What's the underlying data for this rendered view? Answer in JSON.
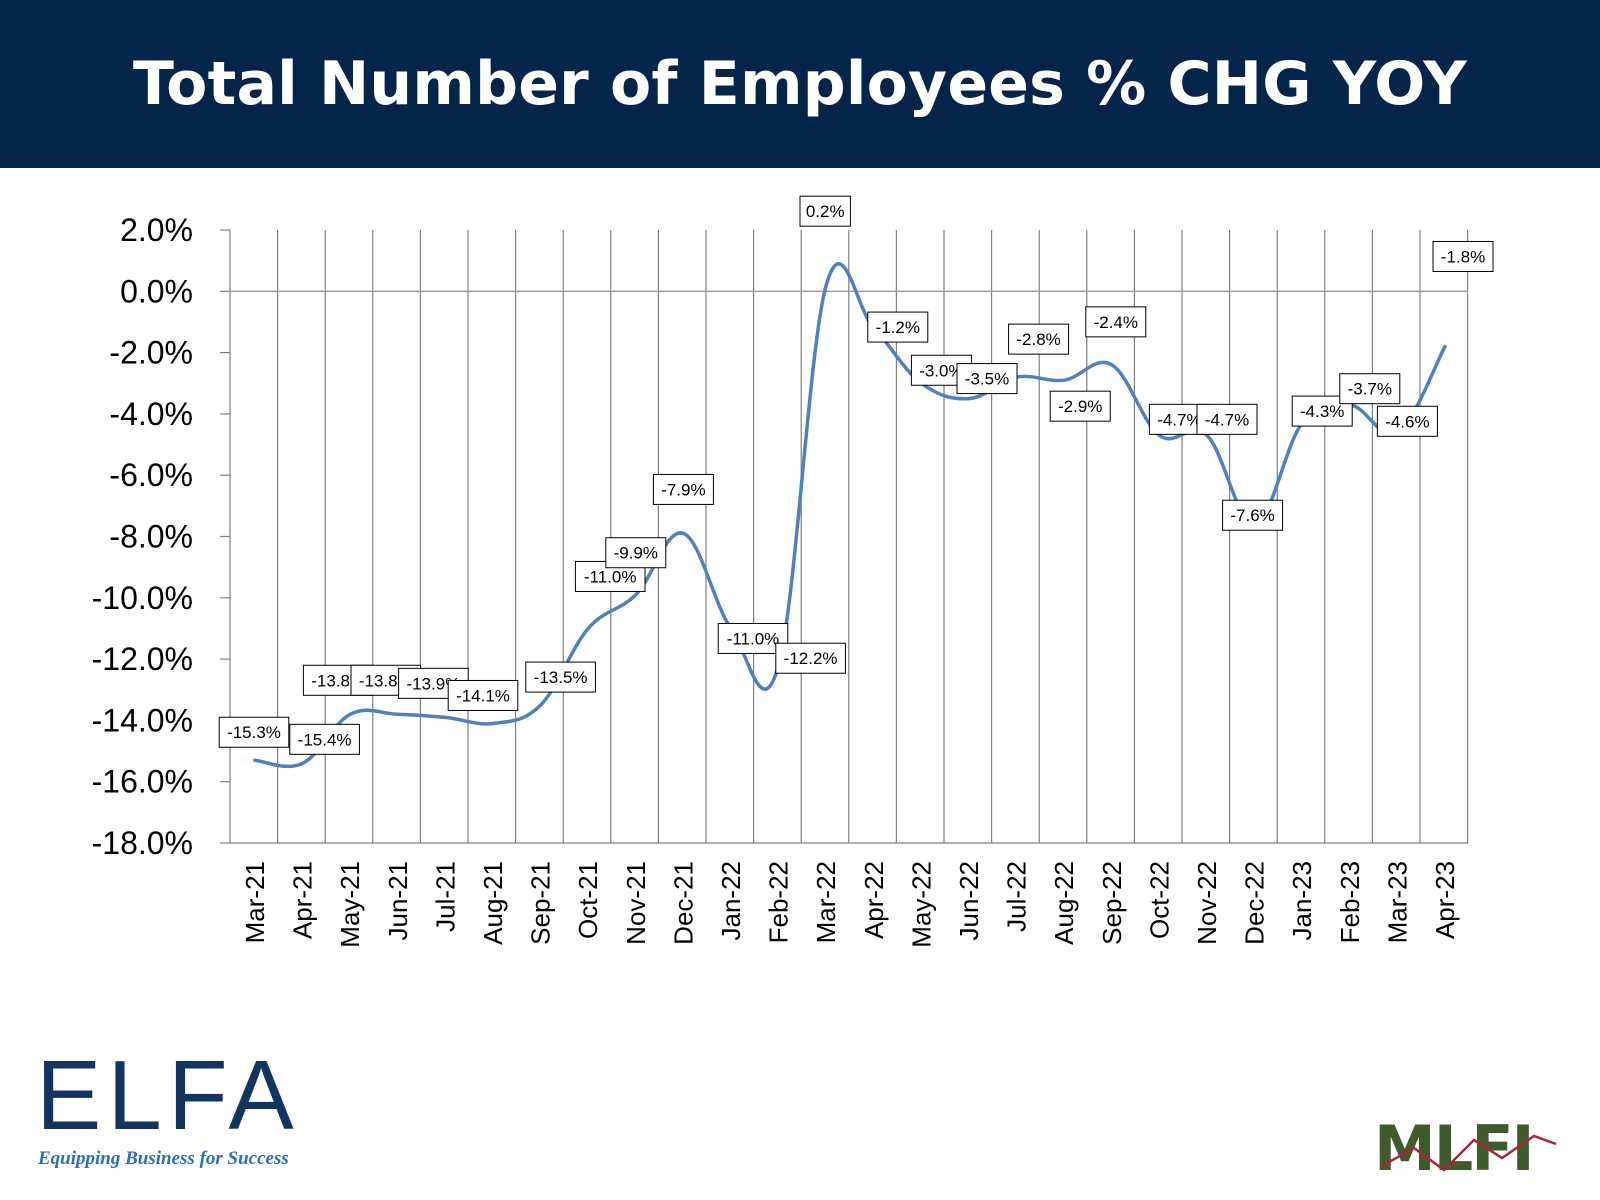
{
  "header": {
    "title": "Total Number of Employees % CHG YOY"
  },
  "colors": {
    "header_bg": "#042549",
    "line": "#4f81bd",
    "grid": "#808080"
  },
  "chart_data": {
    "type": "line",
    "title": "Total Number of Employees % CHG YOY",
    "xlabel": "",
    "ylabel": "",
    "ylim": [
      -18,
      2
    ],
    "ytick_step": 2,
    "y_ticks": [
      "2.0%",
      "0.0%",
      "-2.0%",
      "-4.0%",
      "-6.0%",
      "-8.0%",
      "-10.0%",
      "-12.0%",
      "-14.0%",
      "-16.0%",
      "-18.0%"
    ],
    "grid": "vertical",
    "smooth": true,
    "categories": [
      "Mar-21",
      "Apr-21",
      "May-21",
      "Jun-21",
      "Jul-21",
      "Aug-21",
      "Sep-21",
      "Oct-21",
      "Nov-21",
      "Dec-21",
      "Jan-22",
      "Feb-22",
      "Mar-22",
      "Apr-22",
      "May-22",
      "Jun-22",
      "Jul-22",
      "Aug-22",
      "Sep-22",
      "Oct-22",
      "Nov-22",
      "Dec-22",
      "Jan-23",
      "Feb-23",
      "Mar-23",
      "Apr-23"
    ],
    "series": [
      {
        "values": [
          -15.3,
          -15.4,
          -13.8,
          -13.8,
          -13.9,
          -14.1,
          -13.5,
          -11.0,
          -9.9,
          -7.9,
          -11.0,
          -12.2,
          0.2,
          -1.2,
          -3.0,
          -3.5,
          -2.8,
          -2.9,
          -2.4,
          -4.7,
          -4.7,
          -7.6,
          -4.3,
          -3.7,
          -4.6,
          -1.8
        ],
        "data_labels": [
          "-15.3%",
          "-15.4%",
          "-13.8%",
          "-13.8%",
          "-13.9%",
          "-14.1%",
          "-13.5%",
          "-11.0%",
          "-9.9%",
          "-7.9%",
          "-11.0%",
          "-12.2%",
          "0.2%",
          "-1.2%",
          "-3.0%",
          "-3.5%",
          "-2.8%",
          "-2.9%",
          "-2.4%",
          "-4.7%",
          "-4.7%",
          "-7.6%",
          "-4.3%",
          "-3.7%",
          "-4.6%",
          "-1.8%"
        ]
      }
    ]
  },
  "logos": {
    "elfa": {
      "word": "ELFA",
      "tagline": "Equipping Business for Success"
    },
    "mlfi": {
      "word": "MLFI"
    }
  }
}
